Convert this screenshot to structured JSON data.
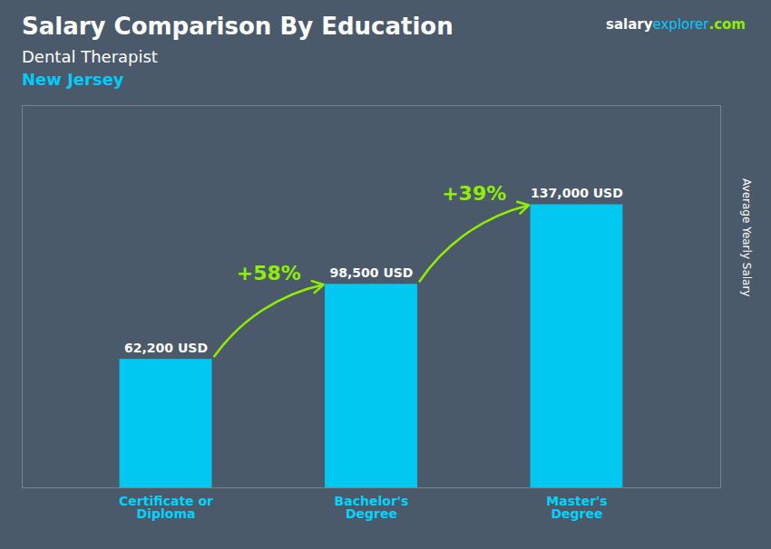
{
  "chart_data": {
    "type": "bar",
    "title": "Salary Comparison By Education",
    "subtitle": [
      "Dental Therapist",
      "New Jersey"
    ],
    "categories": [
      "Certificate or\nDiploma",
      "Bachelor's\nDegree",
      "Master's\nDegree"
    ],
    "values": [
      62200,
      98500,
      137000
    ],
    "value_labels": [
      "62,200 USD",
      "98,500 USD",
      "137,000 USD"
    ],
    "data_labels": true,
    "color": "#00C8F0",
    "ylabel": "Average Yearly Salary",
    "ylim": [
      0,
      185000
    ],
    "yticks": [],
    "tick_labels": "x",
    "grid": false,
    "annotations": [
      {
        "text": "+58%",
        "color": "#90EE00"
      },
      {
        "text": "+39%",
        "color": "#90EE00"
      }
    ],
    "source": [
      {
        "text": "salary",
        "color": "#FFFFFF"
      },
      {
        "text": "explorer",
        "color": "#00CCFF"
      },
      {
        "text": ".com",
        "color": "#90EE00"
      }
    ]
  }
}
